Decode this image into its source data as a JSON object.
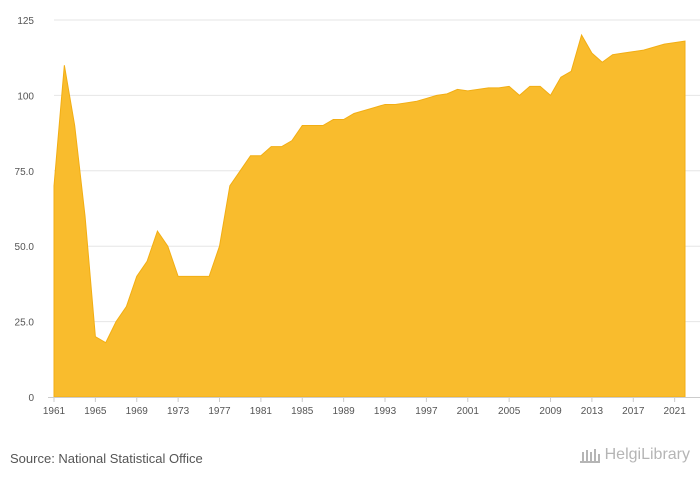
{
  "footer": {
    "source": "Source: National Statistical Office",
    "brand": "HelgiLibrary"
  },
  "colors": {
    "area_fill": "#F9BC2D",
    "area_stroke": "#F2AE14",
    "grid": "#e6e6e6",
    "text": "#555555",
    "brand": "#b5b5b5"
  },
  "chart_data": {
    "type": "area",
    "title": "",
    "xlabel": "",
    "ylabel": "",
    "xlim": [
      1961,
      2022
    ],
    "ylim": [
      0,
      125
    ],
    "grid": true,
    "y_ticks": [
      {
        "value": 0,
        "label": "0"
      },
      {
        "value": 25,
        "label": "25.0"
      },
      {
        "value": 50,
        "label": "50.0"
      },
      {
        "value": 75,
        "label": "75.0"
      },
      {
        "value": 100,
        "label": "100"
      },
      {
        "value": 125,
        "label": "125"
      }
    ],
    "x_ticks": [
      "1961",
      "1965",
      "1969",
      "1973",
      "1977",
      "1981",
      "1985",
      "1989",
      "1993",
      "1997",
      "2001",
      "2005",
      "2009",
      "2013",
      "2017",
      "2021"
    ],
    "series": [
      {
        "x": [
          1961,
          1962,
          1963,
          1964,
          1965,
          1966,
          1967,
          1968,
          1969,
          1970,
          1971,
          1972,
          1973,
          1974,
          1975,
          1976,
          1977,
          1978,
          1979,
          1980,
          1981,
          1982,
          1983,
          1984,
          1985,
          1986,
          1987,
          1988,
          1989,
          1990,
          1991,
          1992,
          1993,
          1994,
          1995,
          1996,
          1997,
          1998,
          1999,
          2000,
          2001,
          2002,
          2003,
          2004,
          2005,
          2006,
          2007,
          2008,
          2009,
          2010,
          2011,
          2012,
          2013,
          2014,
          2015,
          2016,
          2017,
          2018,
          2019,
          2020,
          2021,
          2022
        ],
        "values": [
          70,
          110,
          90,
          60,
          20,
          18,
          25,
          30,
          40,
          45,
          55,
          50,
          40,
          40,
          40,
          40,
          50,
          70,
          75,
          80,
          80,
          83,
          83,
          85,
          90,
          90,
          90,
          92,
          92,
          94,
          95,
          96,
          97,
          97,
          97.5,
          98,
          99,
          100,
          100.5,
          102,
          101.5,
          102,
          102.5,
          102.5,
          103,
          100,
          103,
          103,
          100,
          106,
          108,
          120,
          114,
          111,
          113.5,
          114,
          114.5,
          115,
          116,
          117,
          117.5,
          118
        ]
      }
    ]
  }
}
